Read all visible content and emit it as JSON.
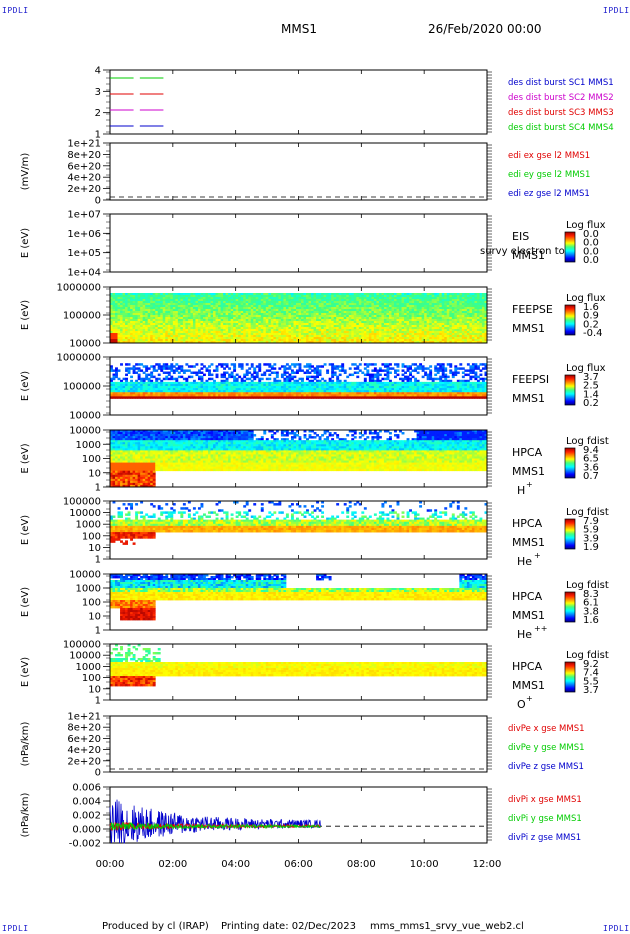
{
  "corners": {
    "top_left": "IPDLI",
    "top_right": "IPDLI",
    "bottom_left": "IPDLI",
    "bottom_right": "IPDLI"
  },
  "header": {
    "mission": "MMS1",
    "datetime": "26/Feb/2020 00:00"
  },
  "footer": {
    "produced_by": "Produced by cl (IRAP)",
    "printing_date": "Printing date: 02/Dec/2023",
    "script_name": "mms_mms1_srvy_vue_web2.cl"
  },
  "colors": {
    "red": "#e00000",
    "green": "#00cc00",
    "blue": "#0000cc",
    "magenta": "#cc00cc",
    "cb_top": "#a00000",
    "cb_bottom": "#000080"
  },
  "chart_data": [
    {
      "type": "line",
      "id": "burst",
      "ylabel": "",
      "yticks": [
        "1",
        "2",
        "3",
        "4"
      ],
      "ylim": [
        0.5,
        4.5
      ],
      "x_hours": [
        0,
        12
      ],
      "series": [
        {
          "name": "des dist burst SC1 MMS1",
          "color": "#0000cc",
          "y": 1,
          "segments": [
            [
              0.0,
              0.75
            ],
            [
              0.95,
              1.7
            ]
          ]
        },
        {
          "name": "des dist burst SC2 MMS2",
          "color": "#cc00cc",
          "y": 2,
          "segments": [
            [
              0.0,
              0.75
            ],
            [
              0.95,
              1.7
            ]
          ]
        },
        {
          "name": "des dist burst SC3 MMS3",
          "color": "#e00000",
          "y": 3,
          "segments": [
            [
              0.0,
              0.75
            ],
            [
              0.95,
              1.7
            ]
          ]
        },
        {
          "name": "des dist burst SC4 MMS4",
          "color": "#00cc00",
          "y": 4,
          "segments": [
            [
              0.0,
              0.75
            ],
            [
              0.95,
              1.7
            ]
          ]
        }
      ]
    },
    {
      "type": "line",
      "id": "edi",
      "ylabel": "(mV/m)",
      "yticks": [
        "0",
        "2e+20",
        "4e+20",
        "6e+20",
        "8e+20",
        "1e+21"
      ],
      "ylim": [
        0,
        1e+21
      ],
      "dashed_zero": true,
      "series": [
        {
          "name": "edi ex gse l2 MMS1",
          "color": "#e00000"
        },
        {
          "name": "edi ey gse l2 MMS1",
          "color": "#00cc00"
        },
        {
          "name": "edi ez gse l2 MMS1",
          "color": "#0000cc"
        }
      ]
    },
    {
      "type": "heatmap",
      "id": "eis",
      "ylabel": "E (eV)",
      "yticks": [
        "1e+04",
        "1e+05",
        "1e+06",
        "1e+07"
      ],
      "label": [
        "EIS",
        "MMS1"
      ],
      "overlay_text": "survy electron to",
      "colorbar": {
        "title": "Log flux",
        "ticks": [
          "0.0",
          "0.0",
          "0.0",
          "0.0"
        ]
      },
      "filled": false
    },
    {
      "type": "heatmap",
      "id": "feepse",
      "ylabel": "E (eV)",
      "yticks": [
        "10000",
        "100000",
        "1000000"
      ],
      "label": [
        "FEEPSE",
        "MMS1"
      ],
      "colorbar": {
        "title": "Log flux",
        "ticks": [
          "1.6",
          "0.9",
          "0.2",
          "-0.4"
        ]
      },
      "filled": true
    },
    {
      "type": "heatmap",
      "id": "feepsi",
      "ylabel": "E (eV)",
      "yticks": [
        "10000",
        "100000",
        "1000000"
      ],
      "label": [
        "FEEPSI",
        "MMS1"
      ],
      "colorbar": {
        "title": "Log flux",
        "ticks": [
          "3.7",
          "2.5",
          "1.4",
          "0.2"
        ]
      },
      "filled": true
    },
    {
      "type": "heatmap",
      "id": "hpca_h",
      "ylabel": "E (eV)",
      "yticks": [
        "1",
        "10",
        "100",
        "1000",
        "10000"
      ],
      "label": [
        "HPCA",
        "MMS1"
      ],
      "species": "H",
      "charge": "+",
      "colorbar": {
        "title": "Log fdist",
        "ticks": [
          "9.4",
          "6.5",
          "3.6",
          "0.7"
        ]
      },
      "filled": true
    },
    {
      "type": "heatmap",
      "id": "hpca_he",
      "ylabel": "E (eV)",
      "yticks": [
        "1",
        "10",
        "100",
        "1000",
        "10000",
        "100000"
      ],
      "label": [
        "HPCA",
        "MMS1"
      ],
      "species": "He",
      "charge": "+",
      "colorbar": {
        "title": "Log fdist",
        "ticks": [
          "7.9",
          "5.9",
          "3.9",
          "1.9"
        ]
      },
      "filled": true
    },
    {
      "type": "heatmap",
      "id": "hpca_hepp",
      "ylabel": "E (eV)",
      "yticks": [
        "1",
        "10",
        "100",
        "1000",
        "10000"
      ],
      "label": [
        "HPCA",
        "MMS1"
      ],
      "species": "He",
      "charge": "++",
      "colorbar": {
        "title": "Log fdist",
        "ticks": [
          "8.3",
          "6.1",
          "3.8",
          "1.6"
        ]
      },
      "filled": true
    },
    {
      "type": "heatmap",
      "id": "hpca_o",
      "ylabel": "E (eV)",
      "yticks": [
        "1",
        "10",
        "100",
        "1000",
        "10000",
        "100000"
      ],
      "label": [
        "HPCA",
        "MMS1"
      ],
      "species": "O",
      "charge": "+",
      "colorbar": {
        "title": "Log fdist",
        "ticks": [
          "9.2",
          "7.4",
          "5.5",
          "3.7"
        ]
      },
      "filled": true
    },
    {
      "type": "line",
      "id": "divpe",
      "ylabel": "(nPa/km)",
      "yticks": [
        "0",
        "2e+20",
        "4e+20",
        "6e+20",
        "8e+20",
        "1e+21"
      ],
      "ylim": [
        0,
        1e+21
      ],
      "dashed_zero": true,
      "series": [
        {
          "name": "divPe x gse MMS1",
          "color": "#e00000"
        },
        {
          "name": "divPe y gse MMS1",
          "color": "#00cc00"
        },
        {
          "name": "divPe z gse MMS1",
          "color": "#0000cc"
        }
      ]
    },
    {
      "type": "line",
      "id": "divpi",
      "ylabel": "(nPa/km)",
      "yticks": [
        "-0.002",
        "0.000",
        "0.002",
        "0.004",
        "0.006"
      ],
      "ylim": [
        -0.003,
        0.007
      ],
      "dashed_zero": true,
      "x_hours": [
        0,
        12
      ],
      "xticks": [
        "00:00",
        "02:00",
        "04:00",
        "06:00",
        "08:00",
        "10:00",
        "12:00"
      ],
      "data_end_hour": 6.7,
      "series": [
        {
          "name": "divPi x gse MMS1",
          "color": "#e00000",
          "amplitude": [
            0.001,
            0.0004
          ]
        },
        {
          "name": "divPi y gse MMS1",
          "color": "#00cc00",
          "amplitude": [
            0.001,
            0.0004
          ]
        },
        {
          "name": "divPi z gse MMS1",
          "color": "#0000cc",
          "amplitude": [
            0.006,
            0.0008
          ]
        }
      ]
    }
  ]
}
